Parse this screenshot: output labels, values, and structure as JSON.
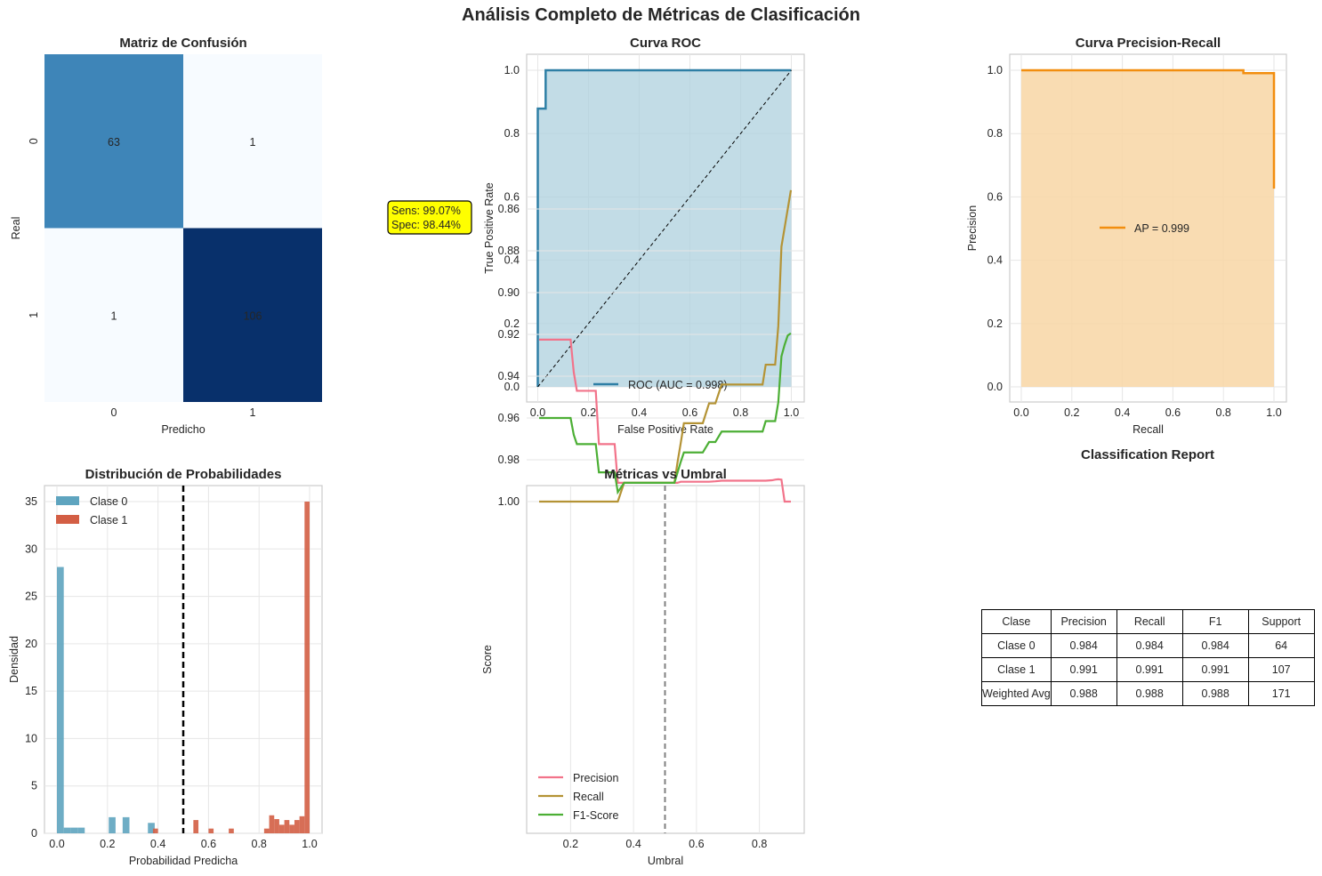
{
  "suptitle": "Análisis Completo de Métricas de Clasificación",
  "colors": {
    "cm_dark": "#08306b",
    "cm_mid": "#4a98c9",
    "cm_light": "#f7fbff",
    "roc_line": "#2e7fa5",
    "roc_fill": "#add0de",
    "pr_line": "#f28e0f",
    "pr_fill": "#f8d6a4",
    "hist0": "#5ea4bf",
    "hist1": "#d35e44",
    "precision": "#f2738a",
    "recall": "#b49335",
    "f1": "#4caf35",
    "annotation_bg": "#ffff00"
  },
  "confusion_matrix": {
    "title": "Matriz de Confusión",
    "xlabel": "Predicho",
    "ylabel": "Real",
    "x_ticks": [
      "0",
      "1"
    ],
    "y_ticks": [
      "0",
      "1"
    ],
    "cells": [
      [
        63,
        1
      ],
      [
        1,
        106
      ]
    ],
    "cell_labels": [
      [
        "63",
        "1"
      ],
      [
        "1",
        "106"
      ]
    ],
    "annotation_lines": [
      "Sens: 99.07%",
      "Spec: 98.44%"
    ]
  },
  "roc": {
    "title": "Curva ROC",
    "xlabel": "False Positive Rate",
    "ylabel": "True Positive Rate",
    "x_ticks": [
      "0.0",
      "0.2",
      "0.4",
      "0.6",
      "0.8",
      "1.0"
    ],
    "y_ticks": [
      "0.0",
      "0.2",
      "0.4",
      "0.6",
      "0.8",
      "1.0"
    ],
    "legend": "ROC (AUC = 0.998)"
  },
  "pr": {
    "title": "Curva Precision-Recall",
    "xlabel": "Recall",
    "ylabel": "Precision",
    "x_ticks": [
      "0.0",
      "0.2",
      "0.4",
      "0.6",
      "0.8",
      "1.0"
    ],
    "y_ticks": [
      "0.0",
      "0.2",
      "0.4",
      "0.6",
      "0.8",
      "1.0"
    ],
    "legend": "AP = 0.999"
  },
  "hist": {
    "title": "Distribución de Probabilidades",
    "xlabel": "Probabilidad Predicha",
    "ylabel": "Densidad",
    "x_ticks": [
      "0.0",
      "0.2",
      "0.4",
      "0.6",
      "0.8",
      "1.0"
    ],
    "y_ticks": [
      "0",
      "5",
      "10",
      "15",
      "20",
      "25",
      "30",
      "35"
    ],
    "legend": [
      "Clase 0",
      "Clase 1"
    ]
  },
  "thresh": {
    "title": "Métricas vs Umbral",
    "xlabel": "Umbral",
    "ylabel": "Score",
    "x_ticks": [
      "0.2",
      "0.4",
      "0.6",
      "0.8"
    ],
    "y_ticks": [
      "0.86",
      "0.88",
      "0.90",
      "0.92",
      "0.94",
      "0.96",
      "0.98",
      "1.00"
    ],
    "legend": [
      "Precision",
      "Recall",
      "F1-Score"
    ]
  },
  "report": {
    "title": "Classification Report",
    "header": [
      "Clase",
      "Precision",
      "Recall",
      "F1",
      "Support"
    ],
    "rows": [
      [
        "Clase 0",
        "0.984",
        "0.984",
        "0.984",
        "64"
      ],
      [
        "Clase 1",
        "0.991",
        "0.991",
        "0.991",
        "107"
      ],
      [
        "Weighted Avg",
        "0.988",
        "0.988",
        "0.988",
        "171"
      ]
    ]
  },
  "chart_data": [
    {
      "type": "heatmap",
      "title": "Matriz de Confusión",
      "xlabel": "Predicho",
      "ylabel": "Real",
      "x": [
        0,
        1
      ],
      "y": [
        0,
        1
      ],
      "values": [
        [
          63,
          1
        ],
        [
          1,
          106
        ]
      ]
    },
    {
      "type": "line",
      "title": "Curva ROC",
      "xlabel": "False Positive Rate",
      "ylabel": "True Positive Rate",
      "xlim": [
        0,
        1
      ],
      "ylim": [
        0,
        1
      ],
      "series": [
        {
          "name": "ROC (AUC = 0.998)",
          "x": [
            0,
            0,
            0.016,
            0.016,
            0.031,
            0.031,
            1.0
          ],
          "y": [
            0,
            0.879,
            0.879,
            0.879,
            0.879,
            1.0,
            1.0
          ]
        },
        {
          "name": "chance",
          "x": [
            0,
            1
          ],
          "y": [
            0,
            1
          ]
        }
      ]
    },
    {
      "type": "line",
      "title": "Curva Precision-Recall",
      "xlabel": "Recall",
      "ylabel": "Precision",
      "xlim": [
        0,
        1
      ],
      "ylim": [
        0,
        1
      ],
      "series": [
        {
          "name": "AP = 0.999",
          "x": [
            0.0,
            0.879,
            0.879,
            1.0,
            1.0
          ],
          "y": [
            1.0,
            1.0,
            0.991,
            0.991,
            0.626
          ]
        }
      ]
    },
    {
      "type": "bar",
      "title": "Distribución de Probabilidades",
      "xlabel": "Probabilidad Predicha",
      "ylabel": "Densidad",
      "xlim": [
        0,
        1
      ],
      "ylim": [
        0,
        35
      ],
      "threshold": 0.5,
      "series": [
        {
          "name": "Clase 0",
          "bins": [
            [
              0.0,
              0.027
            ],
            [
              0.027,
              0.055
            ],
            [
              0.055,
              0.082
            ],
            [
              0.082,
              0.11
            ],
            [
              0.205,
              0.232
            ],
            [
              0.26,
              0.287
            ],
            [
              0.36,
              0.387
            ]
          ],
          "values": [
            28.1,
            0.6,
            0.6,
            0.6,
            1.7,
            1.7,
            1.1
          ]
        },
        {
          "name": "Clase 1",
          "bins": [
            [
              0.38,
              0.4
            ],
            [
              0.54,
              0.56
            ],
            [
              0.6,
              0.62
            ],
            [
              0.68,
              0.7
            ],
            [
              0.82,
              0.84
            ],
            [
              0.84,
              0.86
            ],
            [
              0.86,
              0.88
            ],
            [
              0.88,
              0.9
            ],
            [
              0.9,
              0.92
            ],
            [
              0.92,
              0.94
            ],
            [
              0.94,
              0.96
            ],
            [
              0.96,
              0.98
            ],
            [
              0.98,
              1.0
            ]
          ],
          "values": [
            0.5,
            1.4,
            0.5,
            0.5,
            0.5,
            1.9,
            1.5,
            0.9,
            1.4,
            0.9,
            1.4,
            1.8,
            35.0
          ]
        }
      ]
    },
    {
      "type": "line",
      "title": "Métricas vs Umbral",
      "xlabel": "Umbral",
      "ylabel": "Score",
      "xlim": [
        0.1,
        0.9
      ],
      "ylim": [
        0.85,
        1.005
      ],
      "threshold": 0.5,
      "x": [
        0.1,
        0.15,
        0.2,
        0.21,
        0.22,
        0.24,
        0.28,
        0.29,
        0.32,
        0.34,
        0.35,
        0.37,
        0.4,
        0.45,
        0.5,
        0.53,
        0.54,
        0.55,
        0.56,
        0.58,
        0.6,
        0.62,
        0.64,
        0.66,
        0.68,
        0.7,
        0.75,
        0.8,
        0.81,
        0.82,
        0.84,
        0.85,
        0.86,
        0.87,
        0.88,
        0.89,
        0.9
      ],
      "series": [
        {
          "name": "Precision",
          "values": [
            0.9225,
            0.9225,
            0.9225,
            0.938,
            0.947,
            0.947,
            0.947,
            0.9725,
            0.9725,
            0.9725,
            0.991,
            0.991,
            0.991,
            0.991,
            0.991,
            0.991,
            0.991,
            0.9905,
            0.9905,
            0.9905,
            0.9905,
            0.9905,
            0.9905,
            0.9903,
            0.99,
            0.99,
            0.99,
            0.99,
            0.99,
            0.99,
            0.9898,
            0.9895,
            0.9893,
            0.9895,
            1.0,
            1.0,
            1.0
          ]
        },
        {
          "name": "Recall",
          "values": [
            1.0,
            1.0,
            1.0,
            1.0,
            1.0,
            1.0,
            1.0,
            1.0,
            1.0,
            1.0,
            1.0,
            0.991,
            0.991,
            0.991,
            0.991,
            0.991,
            0.981,
            0.972,
            0.9625,
            0.9625,
            0.9625,
            0.9625,
            0.953,
            0.953,
            0.944,
            0.944,
            0.944,
            0.944,
            0.944,
            0.9345,
            0.9345,
            0.9345,
            0.916,
            0.878,
            0.869,
            0.86,
            0.851
          ]
        },
        {
          "name": "F1-Score",
          "values": [
            0.96,
            0.96,
            0.96,
            0.968,
            0.9725,
            0.9725,
            0.9725,
            0.986,
            0.986,
            0.986,
            0.9955,
            0.991,
            0.991,
            0.991,
            0.991,
            0.991,
            0.986,
            0.981,
            0.9765,
            0.9765,
            0.9765,
            0.9765,
            0.9715,
            0.9715,
            0.9665,
            0.9665,
            0.9665,
            0.9665,
            0.9665,
            0.9615,
            0.9615,
            0.9615,
            0.9525,
            0.9305,
            0.925,
            0.9205,
            0.9195
          ]
        }
      ]
    }
  ]
}
